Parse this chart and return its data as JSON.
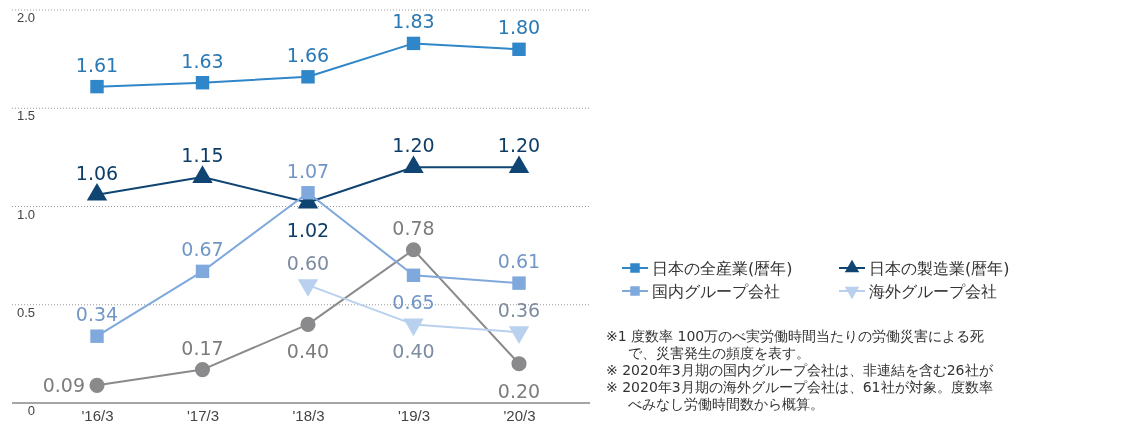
{
  "chart_data": {
    "type": "line",
    "categories": [
      "'16/3",
      "'17/3",
      "'18/3",
      "'19/3",
      "'20/3"
    ],
    "series": [
      {
        "name": "日本の全産業(暦年)",
        "color": "#2f86c8",
        "marker": "square",
        "values": [
          1.61,
          1.63,
          1.66,
          1.83,
          1.8
        ],
        "value_labels": [
          "1.61",
          "1.63",
          "1.66",
          "1.83",
          "1.80"
        ]
      },
      {
        "name": "日本の製造業(暦年)",
        "color": "#0f4473",
        "marker": "triangle",
        "values": [
          1.06,
          1.15,
          1.02,
          1.2,
          1.2
        ],
        "value_labels": [
          "1.06",
          "1.15",
          "1.02",
          "1.20",
          "1.20"
        ]
      },
      {
        "color": "#8a8a8c",
        "marker": "circle",
        "values": [
          0.09,
          0.17,
          0.4,
          0.78,
          0.2
        ],
        "value_labels": [
          "0.09",
          "0.17",
          "0.40",
          "0.78",
          "0.20"
        ]
      },
      {
        "name": "国内グループ会社",
        "color": "#7fa8dc",
        "marker": "square",
        "values": [
          0.34,
          0.67,
          1.07,
          0.65,
          0.61
        ],
        "value_labels": [
          "0.34",
          "0.67",
          "1.07",
          "0.65",
          "0.61"
        ]
      },
      {
        "name": "海外グループ会社",
        "color": "#b9d0ee",
        "marker": "triangle-down",
        "values": [
          null,
          null,
          0.6,
          0.4,
          0.36
        ],
        "value_labels": [
          null,
          null,
          "0.60",
          "0.40",
          "0.36"
        ]
      }
    ],
    "ylim": [
      0,
      2.0
    ],
    "yticks": [
      0,
      {
        "value": 0.5,
        "label": "0.5"
      },
      {
        "value": 1.0,
        "label": "1.0"
      },
      {
        "value": 1.5,
        "label": "1.5"
      },
      {
        "value": 2.0,
        "label": "2.0"
      }
    ],
    "grid": "y",
    "legend": "right",
    "line_style": "solid",
    "annotations": [
      "※1 度数率 100万のべ実労働時間当たりの労働災害による死",
      "で、災害発生の頻度を表す。",
      "※ 2020年3月期の国内グループ会社は、非連結を含む26社が",
      "※ 2020年3月期の海外グループ会社は、61社が対象。度数率",
      "べみなし労働時間数から概算。"
    ]
  }
}
